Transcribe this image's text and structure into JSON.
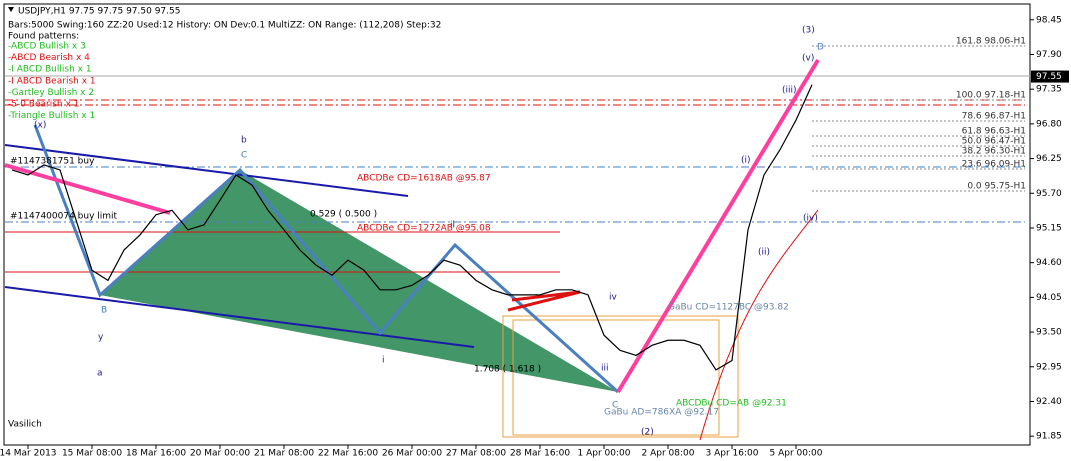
{
  "chart_data": {
    "type": "line",
    "header": "USDJPY,H1  97.75 97.75 97.50 97.55",
    "info": "Bars:5000  Swing:160  ZZ:20  Used:12  History: ON Dev:0.1  MultiZZ: ON  Range: (112,208)  Step:32",
    "patterns_title": "Found patterns:",
    "patterns": [
      {
        "text": "-ABCD Bullish x 3",
        "color": "#22bb22"
      },
      {
        "text": "-ABCD Bearish x 4",
        "color": "#dd1111"
      },
      {
        "text": "-I ABCD Bullish x 1",
        "color": "#22bb22"
      },
      {
        "text": "-I ABCD Bearish x 1",
        "color": "#dd1111"
      },
      {
        "text": "-Gartley Bullish x 2",
        "color": "#22bb22"
      },
      {
        "text": "-5-0 Bearish x 1",
        "color": "#dd1111"
      },
      {
        "text": "-Triangle Bullish x 1",
        "color": "#22bb22"
      }
    ],
    "categories": [
      null,
      "14 Mar 2013",
      null,
      null,
      null,
      "15 Mar 08:00",
      null,
      null,
      null,
      "18 Mar 16:00",
      null,
      null,
      null,
      "20 Mar 00:00",
      null,
      null,
      null,
      "21 Mar 08:00",
      null,
      null,
      null,
      "22 Mar 16:00",
      null,
      null,
      null,
      "26 Mar 00:00",
      null,
      null,
      null,
      "27 Mar 08:00",
      null,
      null,
      null,
      "28 Mar 16:00",
      null,
      null,
      null,
      "1 Apr 00:00",
      null,
      null,
      null,
      "2 Apr 08:00",
      null,
      null,
      null,
      "3 Apr 16:00",
      null,
      null,
      null,
      "5 Apr 00:00",
      null
    ],
    "series": [
      {
        "color": "#000000",
        "values": [
          96.07,
          95.99,
          96.15,
          96.07,
          95.28,
          94.48,
          94.32,
          94.8,
          95.04,
          95.36,
          95.43,
          95.12,
          95.2,
          95.59,
          95.99,
          95.83,
          95.43,
          95.12,
          94.8,
          94.56,
          94.4,
          94.64,
          94.48,
          94.17,
          94.17,
          94.24,
          94.4,
          94.64,
          94.56,
          94.32,
          94.17,
          94.09,
          94.09,
          94.09,
          94.17,
          94.17,
          94.09,
          93.45,
          93.21,
          93.13,
          93.29,
          93.37,
          93.37,
          93.29,
          92.9,
          93.05,
          95.12,
          95.99,
          96.39,
          96.86,
          97.42
        ]
      }
    ],
    "ylim": [
      91.71,
      98.7
    ],
    "yticks": [
      98.45,
      {
        "value": 97.9,
        "label": "97.90"
      },
      97.35,
      {
        "value": 96.8,
        "label": "96.80"
      },
      96.25,
      {
        "value": 95.7,
        "label": "95.70"
      },
      95.15,
      {
        "value": 94.6,
        "label": "94.60"
      },
      94.05,
      {
        "value": 93.5,
        "label": "93.50"
      },
      92.95,
      {
        "value": 92.4,
        "label": "92.40"
      },
      91.85
    ],
    "current_price": 97.55,
    "annotations": [
      {
        "text": "(3)",
        "color": "#1a1a8c"
      },
      {
        "text": "D",
        "color": "#4a7fc0"
      },
      {
        "text": "(v)",
        "color": "#1a1a8c"
      },
      {
        "text": "(iii)",
        "color": "#1a1a8c"
      },
      {
        "text": "(i)",
        "color": "#1a1a8c"
      },
      {
        "text": "(ii)",
        "color": "#1a1a8c"
      },
      {
        "text": "(iv)",
        "color": "#1a1a8c"
      },
      {
        "text": "b",
        "color": "#1a1a8c"
      },
      {
        "text": "C",
        "color": "#4a7fc0"
      },
      {
        "text": "(x)",
        "color": "#1a1a8c"
      },
      {
        "text": "B",
        "color": "#4a7fc0"
      },
      {
        "text": "y",
        "color": "#1a1a8c"
      },
      {
        "text": "a",
        "color": "#1a1a8c"
      },
      {
        "text": "ii",
        "color": "#1a1a8c"
      },
      {
        "text": "i",
        "color": "#1a1a8c"
      },
      {
        "text": "iv",
        "color": "#1a1a8c"
      },
      {
        "text": "iii",
        "color": "#1a1a8c"
      },
      {
        "text": "C",
        "color": "#4a7fc0"
      },
      {
        "text": "(2)",
        "color": "#1a1a8c"
      },
      {
        "text": "Vasilich",
        "color": "#000000"
      },
      {
        "text": "ABCDBe CD=1618AB  @95.87",
        "color": "#dd1111"
      },
      {
        "text": "ABCDBe CD=1272AB  @95.08",
        "color": "#dd1111"
      },
      {
        "text": "0.529 ( 0.500 )",
        "color": "#000000"
      },
      {
        "text": "1.708 ( 1.618 )",
        "color": "#000000"
      },
      {
        "text": "#1147381751 buy",
        "color": "#000000"
      },
      {
        "text": "#1147400074 buy limit",
        "color": "#000000"
      },
      {
        "text": "GaBu AD=786XA  @92.17",
        "color": "#6a86a8"
      },
      {
        "text": "ABCDBu CD=AB  @92.31",
        "color": "#22bb22"
      },
      {
        "text": "GaBu CD=1127BC  @93.82",
        "color": "#6a86a8"
      }
    ],
    "fib_levels": [
      "161.8 98.06-H1",
      "100.0 97.18-H1",
      "78.6 96.87-H1",
      "61.8 96.63-H1",
      "50.0 96.47-H1",
      "38.2 96.30-H1",
      "23.6 96.09-H1",
      "0.0 95.75-H1"
    ]
  }
}
